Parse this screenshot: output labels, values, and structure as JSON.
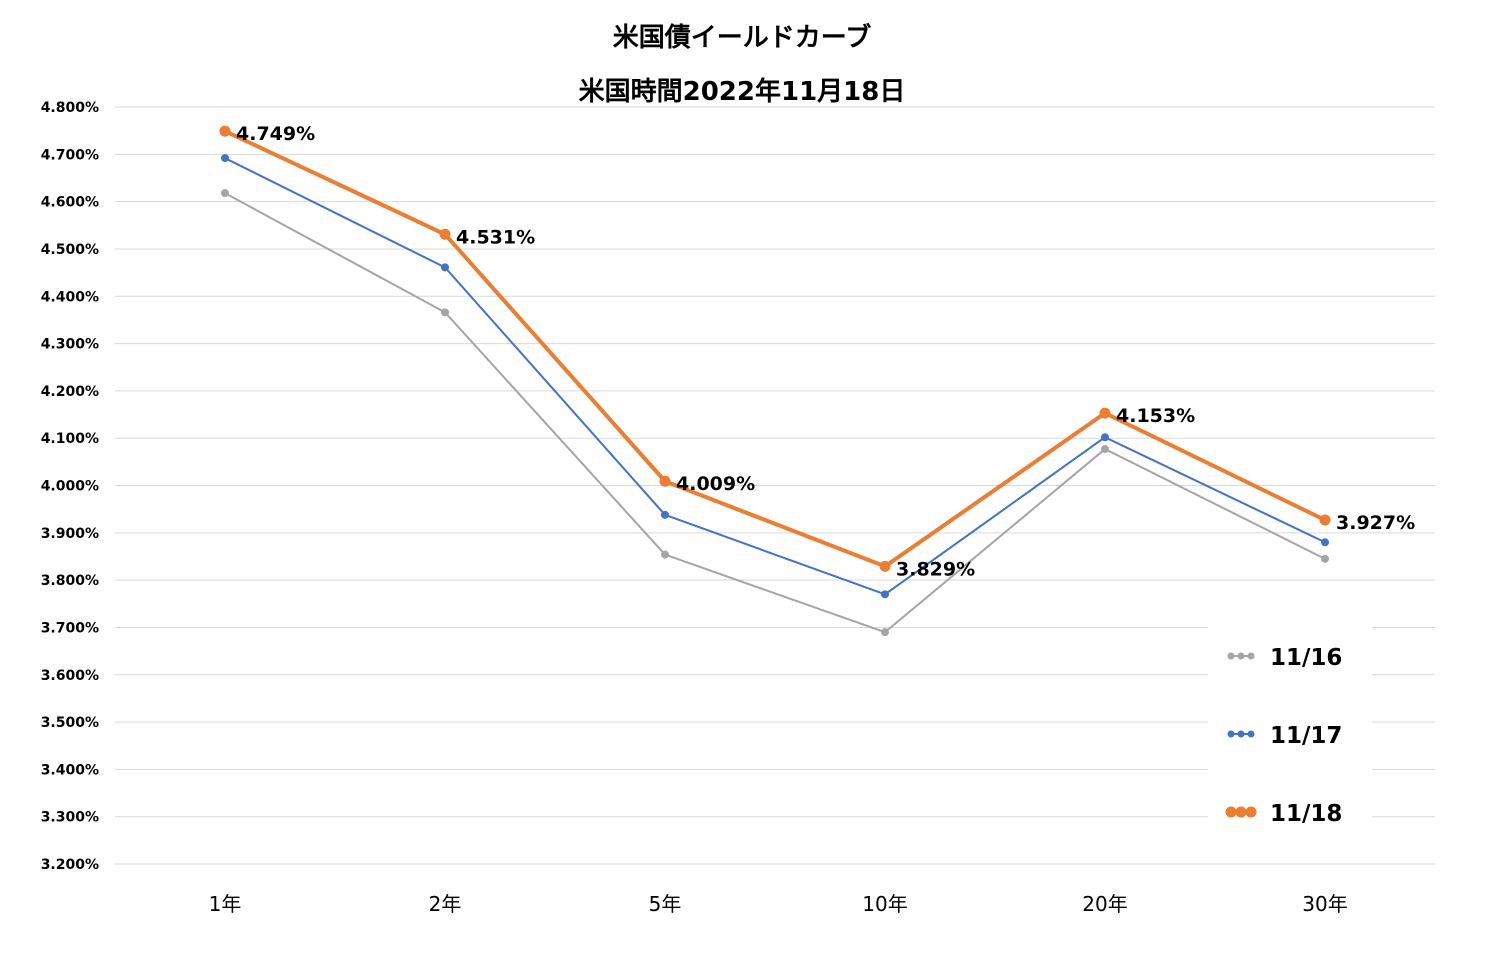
{
  "chart_data": {
    "type": "line",
    "title": "米国債イールドカーブ",
    "subtitle": "米国時間2022年11月18日",
    "categories": [
      "1年",
      "2年",
      "5年",
      "10年",
      "20年",
      "30年"
    ],
    "ylim": [
      3.2,
      4.8
    ],
    "yticks": [
      "4.800%",
      "4.700%",
      "4.600%",
      "4.500%",
      "4.400%",
      "4.300%",
      "4.200%",
      "4.100%",
      "4.000%",
      "3.900%",
      "3.800%",
      "3.700%",
      "3.600%",
      "3.500%",
      "3.400%",
      "3.300%",
      "3.200%"
    ],
    "grid": true,
    "legend_position": "right",
    "series": [
      {
        "name": "11/16",
        "color": "#a5a5a5",
        "values": [
          4.618,
          4.366,
          3.854,
          3.69,
          4.077,
          3.845
        ]
      },
      {
        "name": "11/17",
        "color": "#4472c4",
        "values": [
          4.692,
          4.461,
          3.938,
          3.77,
          4.102,
          3.88
        ]
      },
      {
        "name": "11/18",
        "color": "#ed7d31",
        "values": [
          4.749,
          4.531,
          4.009,
          3.829,
          4.153,
          3.927
        ],
        "data_labels": [
          "4.749%",
          "4.531%",
          "4.009%",
          "3.829%",
          "4.153%",
          "3.927%"
        ]
      }
    ]
  }
}
